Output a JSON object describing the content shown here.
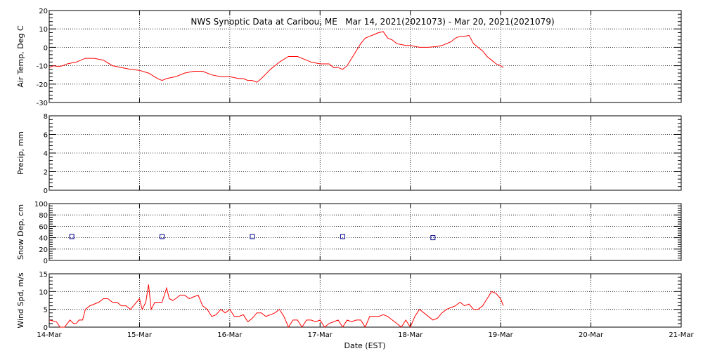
{
  "chart_data": {
    "type": "line",
    "title": "NWS Synoptic Data at Caribou, ME   Mar 14, 2021(2021073) - Mar 20, 2021(2021079)",
    "xlabel": "Date (EST)",
    "x_tick_labels": [
      "14-Mar",
      "15-Mar",
      "16-Mar",
      "17-Mar",
      "18-Mar",
      "19-Mar",
      "20-Mar",
      "21-Mar"
    ],
    "x_range_days": [
      0,
      7
    ],
    "grid": true,
    "line_color": "#ff0000",
    "marker_color": "#00008b",
    "panels": [
      {
        "name": "air-temp",
        "ylabel": "Air Temp, Deg C",
        "ylim": [
          -30,
          20
        ],
        "yticks": [
          "-30",
          "-20",
          "-10",
          "0",
          "10",
          "20"
        ],
        "kind": "line",
        "series": {
          "x": [
            0.0,
            0.05,
            0.1,
            0.15,
            0.2,
            0.3,
            0.4,
            0.45,
            0.5,
            0.6,
            0.7,
            0.8,
            0.9,
            1.0,
            1.1,
            1.2,
            1.25,
            1.3,
            1.4,
            1.5,
            1.6,
            1.7,
            1.8,
            1.9,
            2.0,
            2.1,
            2.15,
            2.2,
            2.25,
            2.3,
            2.35,
            2.45,
            2.55,
            2.65,
            2.75,
            2.85,
            2.9,
            3.0,
            3.05,
            3.1,
            3.15,
            3.2,
            3.25,
            3.3,
            3.35,
            3.45,
            3.5,
            3.55,
            3.6,
            3.65,
            3.7,
            3.75,
            3.8,
            3.85,
            3.9,
            3.95,
            4.0,
            4.1,
            4.2,
            4.3,
            4.35,
            4.45,
            4.5,
            4.55,
            4.6,
            4.65,
            4.7,
            4.75,
            4.8,
            4.85,
            4.9,
            4.95,
            5.0,
            5.03
          ],
          "values": [
            -11,
            -10,
            -10.5,
            -10,
            -9,
            -8,
            -6,
            -6,
            -6,
            -7,
            -10,
            -11,
            -12,
            -12.5,
            -14,
            -17,
            -18,
            -17,
            -16,
            -14,
            -13,
            -13,
            -15,
            -16,
            -16,
            -17,
            -17,
            -18,
            -18,
            -19,
            -17,
            -12,
            -8,
            -5,
            -5,
            -7,
            -8,
            -9,
            -9,
            -9,
            -11,
            -11,
            -12,
            -10,
            -6,
            2,
            5,
            6,
            7,
            8,
            8.5,
            5,
            4,
            2,
            1.5,
            1,
            1,
            0,
            0,
            0.5,
            1,
            3,
            5,
            6,
            6,
            6.5,
            2,
            0,
            -2,
            -5,
            -7,
            -9,
            -10,
            -11
          ]
        }
      },
      {
        "name": "precip",
        "ylabel": "Precip, mm",
        "ylim": [
          0,
          8
        ],
        "yticks": [
          "0",
          "2",
          "4",
          "6",
          "8"
        ],
        "kind": "empty"
      },
      {
        "name": "snow-depth",
        "ylabel": "Snow Dep, cm",
        "ylim": [
          0,
          100
        ],
        "yticks": [
          "0",
          "20",
          "40",
          "60",
          "80",
          "100"
        ],
        "kind": "scatter",
        "series": {
          "x": [
            0.25,
            1.25,
            2.25,
            3.25,
            4.25
          ],
          "values": [
            42,
            42,
            42,
            42,
            40
          ]
        }
      },
      {
        "name": "wind-speed",
        "ylabel": "Wind Spd, m/s",
        "ylim": [
          0,
          15
        ],
        "yticks": [
          "0",
          "5",
          "10",
          "15"
        ],
        "kind": "line",
        "series": {
          "x": [
            0.0,
            0.08,
            0.12,
            0.17,
            0.2,
            0.23,
            0.27,
            0.3,
            0.33,
            0.37,
            0.4,
            0.45,
            0.5,
            0.55,
            0.6,
            0.65,
            0.7,
            0.75,
            0.8,
            0.85,
            0.9,
            0.95,
            1.0,
            1.03,
            1.07,
            1.1,
            1.13,
            1.17,
            1.2,
            1.25,
            1.3,
            1.33,
            1.37,
            1.4,
            1.45,
            1.5,
            1.55,
            1.6,
            1.65,
            1.7,
            1.75,
            1.8,
            1.85,
            1.9,
            1.95,
            2.0,
            2.05,
            2.1,
            2.15,
            2.2,
            2.25,
            2.3,
            2.35,
            2.4,
            2.45,
            2.5,
            2.55,
            2.6,
            2.65,
            2.7,
            2.75,
            2.8,
            2.85,
            2.9,
            2.95,
            3.0,
            3.05,
            3.1,
            3.15,
            3.2,
            3.25,
            3.3,
            3.35,
            3.4,
            3.45,
            3.5,
            3.55,
            3.6,
            3.65,
            3.7,
            3.75,
            3.8,
            3.85,
            3.9,
            3.95,
            4.0,
            4.05,
            4.1,
            4.15,
            4.2,
            4.25,
            4.3,
            4.35,
            4.4,
            4.45,
            4.5,
            4.55,
            4.6,
            4.65,
            4.7,
            4.75,
            4.8,
            4.85,
            4.9,
            4.95,
            5.0,
            5.03
          ],
          "values": [
            2,
            1.5,
            0,
            0,
            1,
            2,
            1,
            1,
            2,
            2,
            5,
            6,
            6.5,
            7,
            8,
            8,
            7,
            7,
            6,
            6,
            5,
            6.5,
            8,
            5,
            7,
            12,
            5,
            7,
            7,
            7,
            11,
            8,
            7.5,
            8,
            9,
            9,
            8,
            8.5,
            9,
            6,
            5,
            3,
            3.5,
            5,
            4,
            5,
            3,
            3,
            3.5,
            1.5,
            2.5,
            4,
            4,
            3,
            3.5,
            4,
            5,
            3,
            0,
            2,
            2,
            0,
            2,
            2,
            1.5,
            2,
            0,
            1,
            1.5,
            2,
            0,
            2,
            1.5,
            2,
            2,
            0,
            3,
            3,
            3,
            3.5,
            3,
            2,
            1,
            0,
            2,
            0,
            3,
            5,
            4,
            3,
            2,
            2.5,
            4,
            5,
            5.5,
            6,
            7,
            6,
            6.5,
            5,
            5,
            6,
            8,
            10,
            9.5,
            8,
            6
          ]
        }
      }
    ]
  }
}
